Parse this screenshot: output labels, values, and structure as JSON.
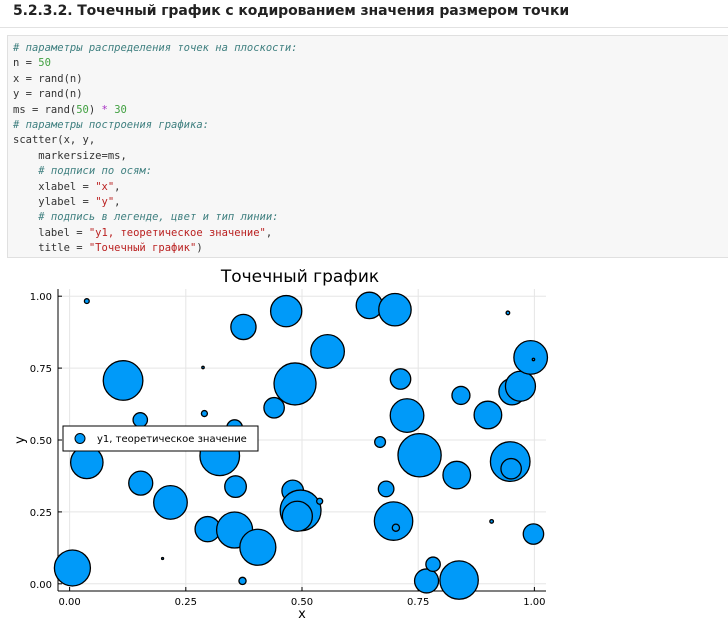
{
  "heading": "5.2.3.2. Точечный график с кодированием значения размером точки",
  "code_lines": [
    [
      {
        "t": "# параметры распределения точек на плоскости:",
        "c": "comment"
      }
    ],
    [
      {
        "t": "n = ",
        "c": ""
      },
      {
        "t": "50",
        "c": "num"
      }
    ],
    [
      {
        "t": "x = rand(n)",
        "c": ""
      }
    ],
    [
      {
        "t": "y = rand(n)",
        "c": ""
      }
    ],
    [
      {
        "t": "ms = rand(",
        "c": ""
      },
      {
        "t": "50",
        "c": "num"
      },
      {
        "t": ") ",
        "c": ""
      },
      {
        "t": "*",
        "c": "op"
      },
      {
        "t": " ",
        "c": ""
      },
      {
        "t": "30",
        "c": "num"
      }
    ],
    [
      {
        "t": "# параметры построения графика:",
        "c": "comment"
      }
    ],
    [
      {
        "t": "scatter(x, y,",
        "c": ""
      }
    ],
    [
      {
        "t": "    markersize=ms,",
        "c": ""
      }
    ],
    [
      {
        "t": "    # подписи по осям:",
        "c": "comment"
      }
    ],
    [
      {
        "t": "    xlabel = ",
        "c": ""
      },
      {
        "t": "\"x\"",
        "c": "str"
      },
      {
        "t": ",",
        "c": ""
      }
    ],
    [
      {
        "t": "    ylabel = ",
        "c": ""
      },
      {
        "t": "\"y\"",
        "c": "str"
      },
      {
        "t": ",",
        "c": ""
      }
    ],
    [
      {
        "t": "    # подпись в легенде, цвет и тип линии:",
        "c": "comment"
      }
    ],
    [
      {
        "t": "    label = ",
        "c": ""
      },
      {
        "t": "\"y1, теоретическое значение\"",
        "c": "str"
      },
      {
        "t": ",",
        "c": ""
      }
    ],
    [
      {
        "t": "    title = ",
        "c": ""
      },
      {
        "t": "\"Точечный график\"",
        "c": "str"
      },
      {
        "t": ")",
        "c": ""
      }
    ]
  ],
  "colors": {
    "marker_fill": "#009af9",
    "marker_stroke": "#000000",
    "grid": "#e5e5e5",
    "axis": "#000000",
    "comment": "#408080",
    "string": "#ba2121",
    "number": "#40a040"
  },
  "chart_data": {
    "type": "scatter",
    "title": "Точечный график",
    "xlabel": "x",
    "ylabel": "y",
    "xlim": [
      -0.025,
      1.025
    ],
    "ylim": [
      -0.025,
      1.025
    ],
    "xticks": [
      "0.00",
      "0.25",
      "0.50",
      "0.75",
      "1.00"
    ],
    "yticks": [
      "0.00",
      "0.25",
      "0.50",
      "0.75",
      "1.00"
    ],
    "grid": true,
    "legend_position": "left-middle",
    "series": [
      {
        "name": "y1, теоретическое значение",
        "points": [
          {
            "x": 0.037,
            "y": 0.983,
            "size": 4
          },
          {
            "x": 0.006,
            "y": 0.055,
            "size": 30
          },
          {
            "x": 0.037,
            "y": 0.422,
            "size": 27
          },
          {
            "x": 0.115,
            "y": 0.707,
            "size": 33
          },
          {
            "x": 0.153,
            "y": 0.35,
            "size": 20
          },
          {
            "x": 0.152,
            "y": 0.57,
            "size": 12
          },
          {
            "x": 0.217,
            "y": 0.283,
            "size": 28
          },
          {
            "x": 0.2,
            "y": 0.088,
            "size": 1
          },
          {
            "x": 0.287,
            "y": 0.752,
            "size": 2
          },
          {
            "x": 0.29,
            "y": 0.592,
            "size": 5
          },
          {
            "x": 0.297,
            "y": 0.19,
            "size": 21
          },
          {
            "x": 0.323,
            "y": 0.445,
            "size": 33
          },
          {
            "x": 0.355,
            "y": 0.543,
            "size": 13
          },
          {
            "x": 0.357,
            "y": 0.338,
            "size": 18
          },
          {
            "x": 0.355,
            "y": 0.187,
            "size": 30
          },
          {
            "x": 0.374,
            "y": 0.893,
            "size": 21
          },
          {
            "x": 0.372,
            "y": 0.01,
            "size": 6
          },
          {
            "x": 0.405,
            "y": 0.127,
            "size": 30
          },
          {
            "x": 0.44,
            "y": 0.612,
            "size": 17
          },
          {
            "x": 0.466,
            "y": 0.948,
            "size": 26
          },
          {
            "x": 0.48,
            "y": 0.323,
            "size": 18
          },
          {
            "x": 0.485,
            "y": 0.695,
            "size": 35
          },
          {
            "x": 0.497,
            "y": 0.255,
            "size": 34
          },
          {
            "x": 0.49,
            "y": 0.235,
            "size": 25
          },
          {
            "x": 0.538,
            "y": 0.287,
            "size": 5
          },
          {
            "x": 0.555,
            "y": 0.808,
            "size": 28
          },
          {
            "x": 0.645,
            "y": 0.968,
            "size": 22
          },
          {
            "x": 0.668,
            "y": 0.493,
            "size": 9
          },
          {
            "x": 0.7,
            "y": 0.953,
            "size": 27
          },
          {
            "x": 0.712,
            "y": 0.712,
            "size": 17
          },
          {
            "x": 0.681,
            "y": 0.33,
            "size": 13
          },
          {
            "x": 0.697,
            "y": 0.218,
            "size": 32
          },
          {
            "x": 0.702,
            "y": 0.195,
            "size": 6
          },
          {
            "x": 0.726,
            "y": 0.585,
            "size": 28
          },
          {
            "x": 0.753,
            "y": 0.447,
            "size": 36
          },
          {
            "x": 0.768,
            "y": 0.01,
            "size": 20
          },
          {
            "x": 0.782,
            "y": 0.068,
            "size": 12
          },
          {
            "x": 0.833,
            "y": 0.378,
            "size": 23
          },
          {
            "x": 0.838,
            "y": 0.013,
            "size": 32
          },
          {
            "x": 0.842,
            "y": 0.655,
            "size": 15
          },
          {
            "x": 0.9,
            "y": 0.587,
            "size": 23
          },
          {
            "x": 0.908,
            "y": 0.217,
            "size": 3
          },
          {
            "x": 0.943,
            "y": 0.942,
            "size": 3
          },
          {
            "x": 0.948,
            "y": 0.425,
            "size": 33
          },
          {
            "x": 0.95,
            "y": 0.4,
            "size": 17
          },
          {
            "x": 0.952,
            "y": 0.668,
            "size": 22
          },
          {
            "x": 0.97,
            "y": 0.687,
            "size": 25
          },
          {
            "x": 0.992,
            "y": 0.787,
            "size": 28
          },
          {
            "x": 0.998,
            "y": 0.173,
            "size": 17
          },
          {
            "x": 0.998,
            "y": 0.78,
            "size": 2
          }
        ]
      }
    ]
  }
}
